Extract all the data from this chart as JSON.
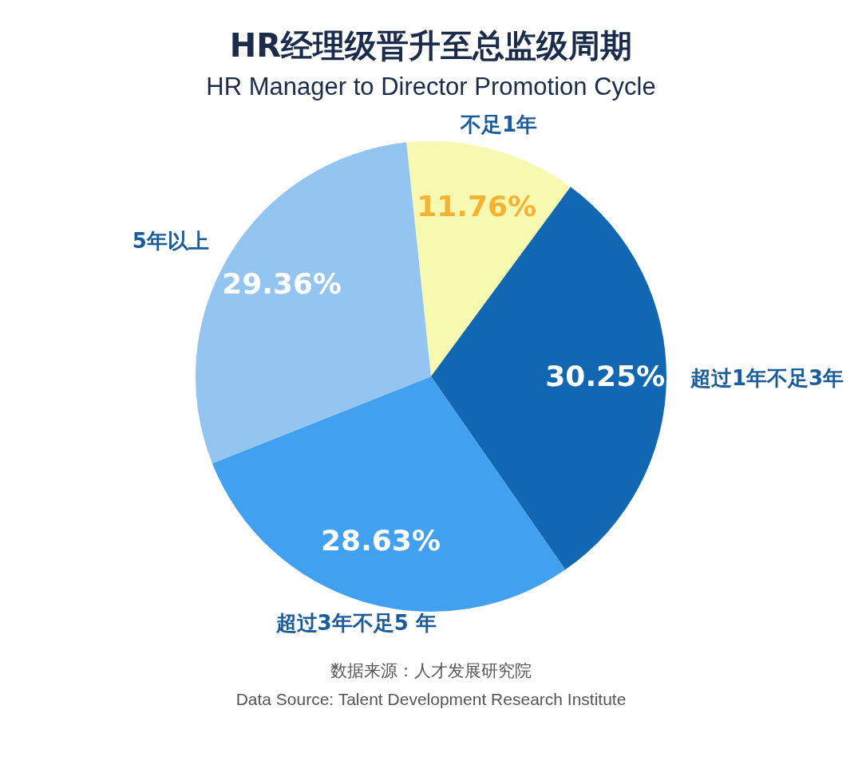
{
  "chart_data": {
    "type": "pie",
    "title": "HR经理级晋升至总监级周期",
    "subtitle": "HR Manager to Director Promotion Cycle",
    "categories": [
      "不足1年",
      "超过1年不足3年",
      "超过3年不足5 年",
      "5年以上"
    ],
    "values": [
      11.76,
      30.25,
      28.63,
      29.36
    ],
    "value_labels": [
      "11.76%",
      "30.25%",
      "28.63%",
      "29.36%"
    ],
    "colors": [
      "#f8f9b0",
      "#1167b1",
      "#42a0f0",
      "#93c5f0"
    ],
    "legend": false,
    "annotations": [
      "数据来源：人才发展研究院",
      "Data Source: Talent Development Research Institute"
    ]
  }
}
